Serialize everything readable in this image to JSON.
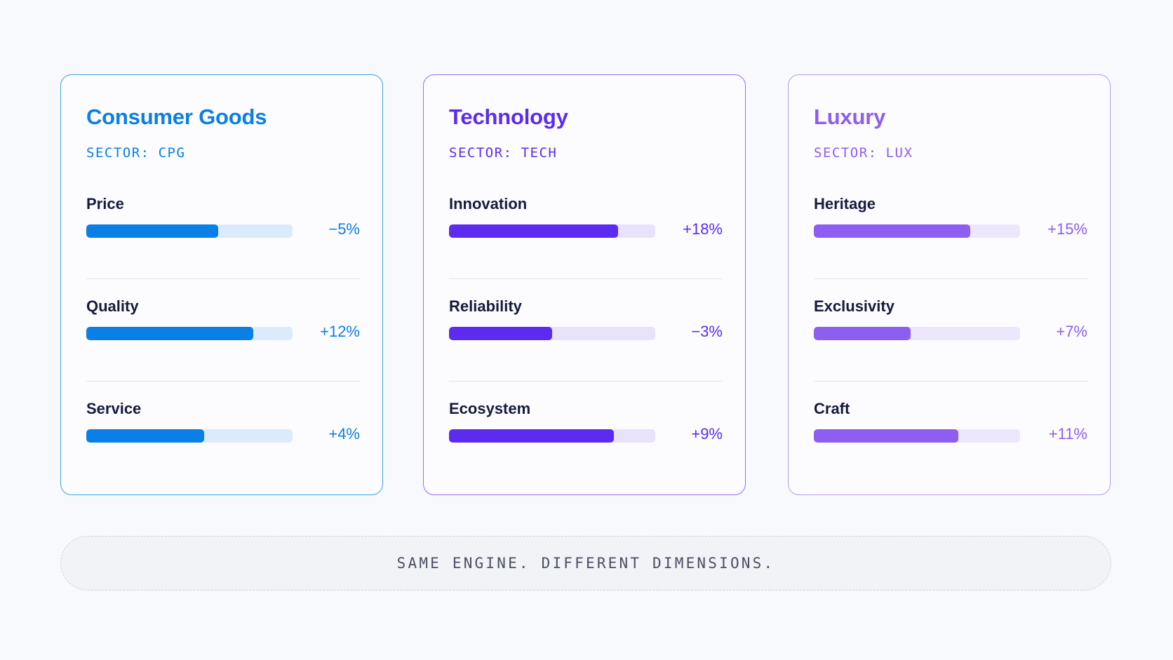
{
  "cards": [
    {
      "title": "Consumer Goods",
      "sector_prefix": "SECTOR:",
      "sector_code": "CPG",
      "colors": {
        "accent": "#0a7fe6",
        "border": "#38a3ea",
        "track": "#dcebfb"
      },
      "metrics": [
        {
          "label": "Price",
          "value": "−5%",
          "fill": 0.64
        },
        {
          "label": "Quality",
          "value": "+12%",
          "fill": 0.81
        },
        {
          "label": "Service",
          "value": "+4%",
          "fill": 0.57
        }
      ]
    },
    {
      "title": "Technology",
      "sector_prefix": "SECTOR:",
      "sector_code": "TECH",
      "colors": {
        "accent": "#5b2cf0",
        "border": "#9a6df0",
        "track": "#e8e3fb"
      },
      "metrics": [
        {
          "label": "Innovation",
          "value": "+18%",
          "fill": 0.82
        },
        {
          "label": "Reliability",
          "value": "−3%",
          "fill": 0.5
        },
        {
          "label": "Ecosystem",
          "value": "+9%",
          "fill": 0.8
        }
      ]
    },
    {
      "title": "Luxury",
      "sector_prefix": "SECTOR:",
      "sector_code": "LUX",
      "colors": {
        "accent": "#8d5ef0",
        "border": "#b89af0",
        "track": "#ece7fa"
      },
      "metrics": [
        {
          "label": "Heritage",
          "value": "+15%",
          "fill": 0.76
        },
        {
          "label": "Exclusivity",
          "value": "+7%",
          "fill": 0.47
        },
        {
          "label": "Craft",
          "value": "+11%",
          "fill": 0.7
        }
      ]
    }
  ],
  "footer": {
    "text": "SAME ENGINE. DIFFERENT DIMENSIONS."
  }
}
